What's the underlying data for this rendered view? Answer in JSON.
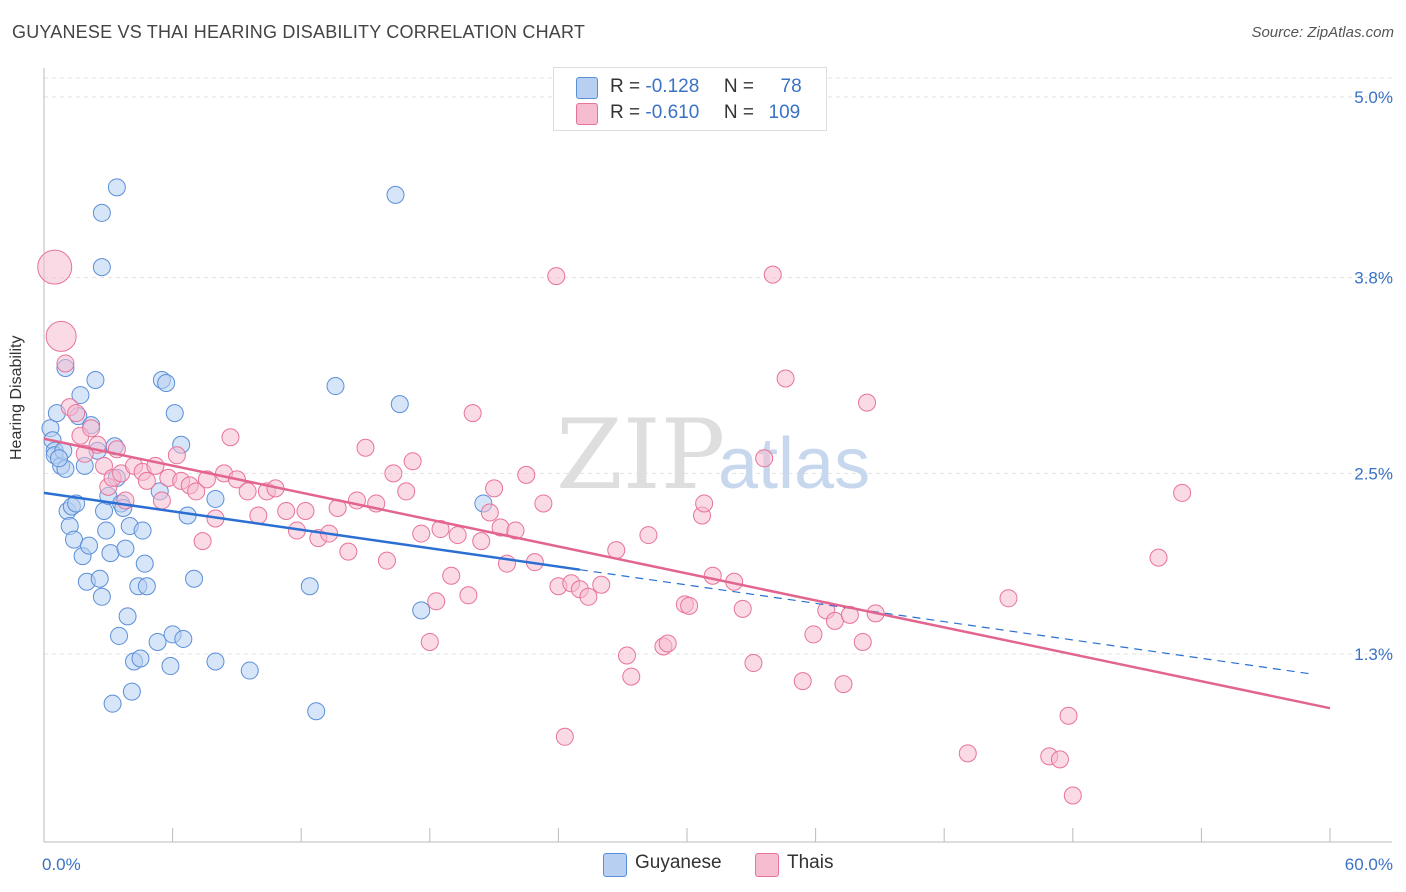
{
  "title": "GUYANESE VS THAI HEARING DISABILITY CORRELATION CHART",
  "source": "Source: ZipAtlas.com",
  "watermark": {
    "zip": "ZIP",
    "atlas": "atlas"
  },
  "colors": {
    "blue": "#5b8fd9",
    "blue_fill": "#b7d0f2",
    "pink": "#e8739a",
    "pink_fill": "#f6bcd0",
    "blue_line": "#2a6fd1",
    "pink_line": "#e2658f",
    "tick_label": "#3a72c4"
  },
  "legend": {
    "rows": [
      {
        "r_label": "R =",
        "r_value": "-0.128",
        "n_label": "N =",
        "n_value": "78"
      },
      {
        "r_label": "R =",
        "r_value": "-0.610",
        "n_label": "N =",
        "n_value": "109"
      }
    ]
  },
  "chart_data": {
    "type": "scatter",
    "xlabel": "",
    "ylabel": "Hearing Disability",
    "xlim": [
      0,
      60
    ],
    "ylim": [
      0.0,
      5.2
    ],
    "x_ticks_labels": [
      "0.0%",
      "60.0%"
    ],
    "y_ticks": [
      1.3,
      2.5,
      3.8,
      5.0
    ],
    "y_ticks_labels": [
      "1.3%",
      "2.5%",
      "3.8%",
      "5.0%"
    ],
    "grid": true,
    "legend_position": "top-center",
    "series": [
      {
        "name": "Guyanese",
        "color": "#5b8fd9",
        "trend": {
          "x0": 0,
          "y0": 2.37,
          "x1": 25,
          "y1": 1.86,
          "dashed_to_x": 59,
          "dashed_to_y": 1.17
        },
        "points": [
          [
            0.3,
            2.8
          ],
          [
            0.4,
            2.72
          ],
          [
            0.5,
            2.65
          ],
          [
            0.6,
            2.9
          ],
          [
            0.5,
            2.62
          ],
          [
            0.8,
            2.55
          ],
          [
            0.9,
            2.65
          ],
          [
            1.0,
            2.53
          ],
          [
            1.1,
            2.25
          ],
          [
            1.2,
            2.15
          ],
          [
            1.3,
            2.28
          ],
          [
            1.4,
            2.06
          ],
          [
            1.5,
            2.3
          ],
          [
            1.6,
            2.88
          ],
          [
            1.7,
            3.02
          ],
          [
            1.8,
            1.95
          ],
          [
            1.9,
            2.55
          ],
          [
            2.0,
            1.78
          ],
          [
            2.1,
            2.02
          ],
          [
            2.2,
            2.82
          ],
          [
            2.4,
            3.12
          ],
          [
            2.5,
            2.65
          ],
          [
            2.6,
            1.8
          ],
          [
            2.7,
            1.68
          ],
          [
            2.8,
            2.25
          ],
          [
            2.9,
            2.12
          ],
          [
            3.0,
            2.35
          ],
          [
            3.1,
            1.97
          ],
          [
            3.2,
            0.97
          ],
          [
            3.3,
            2.68
          ],
          [
            3.4,
            2.47
          ],
          [
            3.5,
            1.42
          ],
          [
            3.6,
            2.3
          ],
          [
            3.7,
            2.27
          ],
          [
            3.8,
            2.0
          ],
          [
            3.9,
            1.55
          ],
          [
            4.0,
            2.15
          ],
          [
            4.1,
            1.05
          ],
          [
            4.2,
            1.25
          ],
          [
            4.4,
            1.75
          ],
          [
            4.5,
            1.27
          ],
          [
            4.6,
            2.12
          ],
          [
            4.7,
            1.9
          ],
          [
            4.8,
            1.75
          ],
          [
            5.3,
            1.38
          ],
          [
            5.4,
            2.38
          ],
          [
            5.5,
            3.12
          ],
          [
            5.7,
            3.1
          ],
          [
            5.9,
            1.22
          ],
          [
            6.0,
            1.43
          ],
          [
            6.1,
            2.9
          ],
          [
            6.4,
            2.69
          ],
          [
            6.5,
            1.4
          ],
          [
            6.7,
            2.22
          ],
          [
            7.0,
            1.8
          ],
          [
            8.0,
            1.25
          ],
          [
            8.0,
            2.33
          ],
          [
            9.6,
            1.19
          ],
          [
            12.4,
            1.75
          ],
          [
            12.7,
            0.92
          ],
          [
            13.6,
            3.08
          ],
          [
            16.4,
            4.35
          ],
          [
            16.6,
            2.96
          ],
          [
            17.6,
            1.59
          ],
          [
            20.5,
            2.3
          ],
          [
            2.7,
            3.87
          ],
          [
            2.7,
            4.23
          ],
          [
            3.4,
            4.4
          ],
          [
            1.0,
            3.2
          ],
          [
            0.7,
            2.6
          ]
        ]
      },
      {
        "name": "Thais",
        "color": "#e8739a",
        "trend": {
          "x0": 0,
          "y0": 2.73,
          "x1": 60,
          "y1": 0.94
        },
        "points": [
          [
            0.5,
            3.87
          ],
          [
            0.8,
            3.41
          ],
          [
            1.0,
            3.23
          ],
          [
            1.2,
            2.94
          ],
          [
            1.5,
            2.9
          ],
          [
            1.7,
            2.75
          ],
          [
            2.2,
            2.8
          ],
          [
            2.5,
            2.69
          ],
          [
            2.8,
            2.55
          ],
          [
            3.0,
            2.41
          ],
          [
            3.2,
            2.47
          ],
          [
            3.4,
            2.66
          ],
          [
            3.6,
            2.5
          ],
          [
            3.8,
            2.32
          ],
          [
            4.2,
            2.55
          ],
          [
            4.6,
            2.51
          ],
          [
            4.8,
            2.45
          ],
          [
            5.2,
            2.55
          ],
          [
            5.5,
            2.32
          ],
          [
            5.8,
            2.47
          ],
          [
            6.2,
            2.62
          ],
          [
            6.4,
            2.45
          ],
          [
            6.8,
            2.42
          ],
          [
            7.1,
            2.38
          ],
          [
            7.4,
            2.05
          ],
          [
            7.6,
            2.46
          ],
          [
            8.0,
            2.2
          ],
          [
            8.4,
            2.5
          ],
          [
            8.7,
            2.74
          ],
          [
            9.0,
            2.46
          ],
          [
            9.5,
            2.38
          ],
          [
            10.0,
            2.22
          ],
          [
            10.4,
            2.38
          ],
          [
            10.8,
            2.4
          ],
          [
            11.3,
            2.25
          ],
          [
            11.8,
            2.12
          ],
          [
            12.2,
            2.25
          ],
          [
            12.8,
            2.07
          ],
          [
            13.3,
            2.1
          ],
          [
            13.7,
            2.27
          ],
          [
            14.2,
            1.98
          ],
          [
            14.6,
            2.32
          ],
          [
            15.0,
            2.67
          ],
          [
            15.5,
            2.3
          ],
          [
            16.0,
            1.92
          ],
          [
            16.3,
            2.5
          ],
          [
            16.9,
            2.38
          ],
          [
            17.2,
            2.58
          ],
          [
            17.6,
            2.1
          ],
          [
            18.0,
            1.38
          ],
          [
            18.3,
            1.65
          ],
          [
            18.5,
            2.13
          ],
          [
            19.0,
            1.82
          ],
          [
            19.3,
            2.09
          ],
          [
            19.8,
            1.69
          ],
          [
            20.0,
            2.9
          ],
          [
            20.4,
            2.05
          ],
          [
            20.8,
            2.24
          ],
          [
            21.0,
            2.4
          ],
          [
            21.3,
            2.14
          ],
          [
            21.6,
            1.9
          ],
          [
            22.0,
            2.12
          ],
          [
            22.5,
            2.49
          ],
          [
            22.9,
            1.91
          ],
          [
            23.3,
            2.3
          ],
          [
            23.9,
            3.81
          ],
          [
            24.0,
            1.75
          ],
          [
            24.3,
            0.75
          ],
          [
            24.6,
            1.77
          ],
          [
            25.0,
            1.73
          ],
          [
            25.4,
            1.68
          ],
          [
            26.0,
            1.76
          ],
          [
            26.7,
            1.99
          ],
          [
            27.2,
            1.29
          ],
          [
            27.4,
            1.15
          ],
          [
            28.2,
            2.09
          ],
          [
            28.9,
            1.35
          ],
          [
            29.1,
            1.37
          ],
          [
            29.9,
            1.63
          ],
          [
            30.1,
            1.62
          ],
          [
            30.7,
            2.22
          ],
          [
            30.8,
            2.3
          ],
          [
            31.2,
            1.82
          ],
          [
            32.2,
            1.78
          ],
          [
            32.6,
            1.6
          ],
          [
            33.1,
            1.24
          ],
          [
            33.6,
            2.6
          ],
          [
            34.0,
            3.82
          ],
          [
            34.6,
            3.13
          ],
          [
            35.4,
            1.12
          ],
          [
            35.9,
            1.43
          ],
          [
            36.5,
            1.59
          ],
          [
            36.9,
            1.52
          ],
          [
            37.3,
            1.1
          ],
          [
            37.6,
            1.56
          ],
          [
            38.2,
            1.38
          ],
          [
            38.8,
            1.57
          ],
          [
            38.4,
            2.97
          ],
          [
            43.1,
            0.64
          ],
          [
            45.0,
            1.67
          ],
          [
            46.9,
            0.62
          ],
          [
            47.4,
            0.6
          ],
          [
            47.8,
            0.89
          ],
          [
            48.0,
            0.36
          ],
          [
            52.0,
            1.94
          ],
          [
            53.1,
            2.37
          ],
          [
            1.9,
            2.63
          ]
        ]
      }
    ]
  },
  "bottom_legend": [
    {
      "label": "Guyanese"
    },
    {
      "label": "Thais"
    }
  ]
}
